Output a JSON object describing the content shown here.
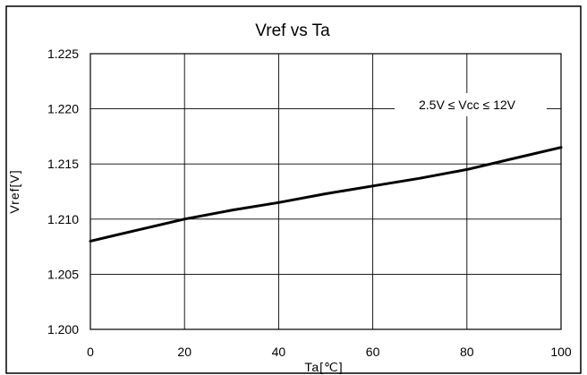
{
  "chart_data": {
    "type": "line",
    "title": "Vref vs Ta",
    "xlabel": "Ta[℃]",
    "ylabel": "Vref[V]",
    "xlim": [
      0,
      100
    ],
    "ylim": [
      1.2,
      1.225
    ],
    "x_ticks": [
      0,
      20,
      40,
      60,
      80,
      100
    ],
    "y_ticks": [
      "1.200",
      "1.205",
      "1.210",
      "1.215",
      "1.220",
      "1.225"
    ],
    "grid": true,
    "annotation": "2.5V ≤ Vcc ≤ 12V",
    "series": [
      {
        "x": [
          0,
          10,
          20,
          30,
          40,
          50,
          60,
          70,
          80,
          90,
          100
        ],
        "values": [
          1.208,
          1.209,
          1.21,
          1.2108,
          1.2115,
          1.2123,
          1.213,
          1.2137,
          1.2145,
          1.2155,
          1.2165
        ]
      }
    ],
    "line_color": "#000000"
  }
}
